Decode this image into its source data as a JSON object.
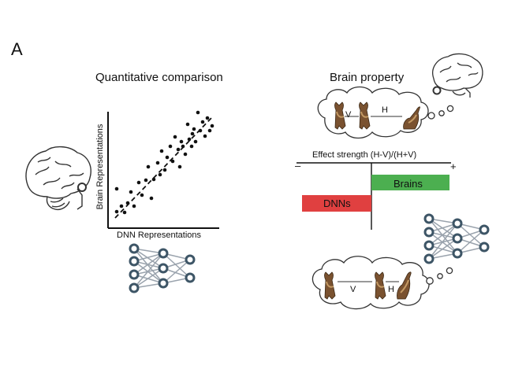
{
  "panel_label": "A",
  "left_panel": {
    "title": "Quantitative comparison",
    "x_axis_label": "DNN Representations",
    "y_axis_label": "Brain Representations"
  },
  "right_panel": {
    "title": "Brain property",
    "effect_axis_label": "Effect strength (H-V)/(H+V)",
    "minus_sign": "–",
    "plus_sign": "+",
    "bars": [
      {
        "label": "Brains",
        "value": 0.45,
        "color": "#4caf50"
      },
      {
        "label": "DNNs",
        "value": -0.4,
        "color": "#e04040"
      }
    ],
    "top_thought": {
      "left_label": "V",
      "right_label": "H"
    },
    "bottom_thought": {
      "left_label": "V",
      "right_label": "H"
    }
  },
  "chart_data": {
    "type": "scatter",
    "xlabel": "DNN Representations",
    "ylabel": "Brain Representations",
    "trend": "positive linear (dashed fit line)"
  }
}
